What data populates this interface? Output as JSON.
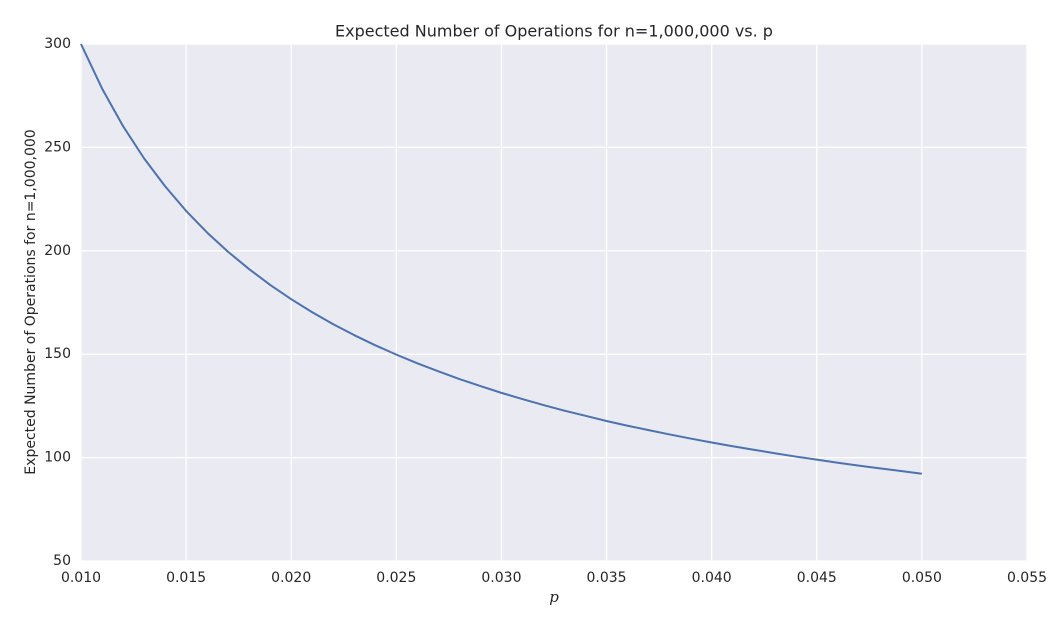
{
  "chart_data": {
    "type": "line",
    "title": "Expected Number of Operations for n=1,000,000 vs. p",
    "x_label": "p",
    "y_label": "Expected Number of Operations for n=1,000,000",
    "x": [
      0.01,
      0.011,
      0.012,
      0.013,
      0.014,
      0.015,
      0.016,
      0.017,
      0.018,
      0.019,
      0.02,
      0.021,
      0.022,
      0.023,
      0.024,
      0.025,
      0.026,
      0.027,
      0.028,
      0.029,
      0.03,
      0.031,
      0.032,
      0.033,
      0.034,
      0.035,
      0.036,
      0.037,
      0.038,
      0.039,
      0.04,
      0.041,
      0.042,
      0.043,
      0.044,
      0.045,
      0.046,
      0.047,
      0.048,
      0.049,
      0.05
    ],
    "series": [
      {
        "color": "#4c72b0",
        "values": [
          300.0,
          278.5,
          260.3,
          244.7,
          231.2,
          219.3,
          208.8,
          199.5,
          191.1,
          183.5,
          176.6,
          170.3,
          164.5,
          159.2,
          154.3,
          149.8,
          145.6,
          141.7,
          138.0,
          134.6,
          131.3,
          128.3,
          125.4,
          122.7,
          120.2,
          117.7,
          115.4,
          113.3,
          111.2,
          109.2,
          107.3,
          105.5,
          103.8,
          102.1,
          100.5,
          99.0,
          97.5,
          96.1,
          94.8,
          93.5,
          92.2
        ]
      }
    ],
    "xlim": [
      0.01,
      0.055
    ],
    "ylim": [
      50,
      300
    ],
    "xticks": [
      {
        "value": 0.01,
        "label": "0.010"
      },
      {
        "value": 0.015,
        "label": "0.015"
      },
      {
        "value": 0.02,
        "label": "0.020"
      },
      {
        "value": 0.025,
        "label": "0.025"
      },
      {
        "value": 0.03,
        "label": "0.030"
      },
      {
        "value": 0.035,
        "label": "0.035"
      },
      {
        "value": 0.04,
        "label": "0.040"
      },
      {
        "value": 0.045,
        "label": "0.045"
      },
      {
        "value": 0.05,
        "label": "0.050"
      },
      {
        "value": 0.055,
        "label": "0.055"
      }
    ],
    "yticks": [
      50,
      100,
      150,
      200,
      250,
      300
    ],
    "grid": true,
    "background": "#eaeaf2"
  }
}
